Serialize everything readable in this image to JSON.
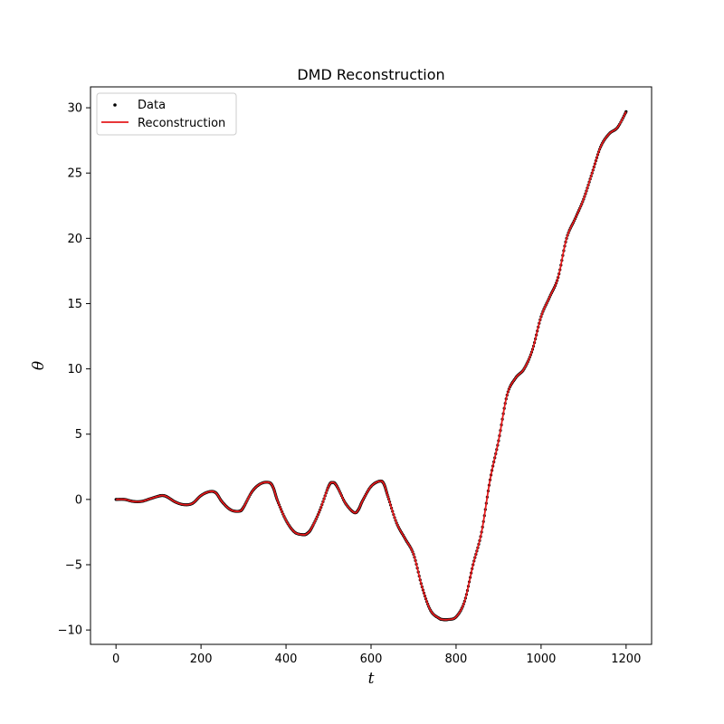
{
  "chart_data": {
    "type": "line",
    "title": "DMD Reconstruction",
    "xlabel": "t",
    "ylabel": "θ",
    "xlim": [
      -60,
      1260
    ],
    "ylim": [
      -11.1,
      31.6
    ],
    "xticks": [
      0,
      200,
      400,
      600,
      800,
      1000,
      1200
    ],
    "xtick_labels": [
      "0",
      "200",
      "400",
      "600",
      "800",
      "1000",
      "1200"
    ],
    "yticks": [
      -10,
      -5,
      0,
      5,
      10,
      15,
      20,
      25,
      30
    ],
    "ytick_labels": [
      "−10",
      "−5",
      "0",
      "5",
      "10",
      "15",
      "20",
      "25",
      "30"
    ],
    "grid": false,
    "legend": {
      "placement": "top-left"
    },
    "colors": {
      "data": "#000000",
      "reconstruction": "#e41a1c"
    },
    "series": [
      {
        "name": "Data",
        "style": "points",
        "x": [
          0,
          20,
          40,
          60,
          80,
          100,
          110,
          120,
          140,
          160,
          180,
          200,
          220,
          235,
          250,
          270,
          290,
          300,
          320,
          340,
          360,
          370,
          380,
          400,
          420,
          440,
          450,
          460,
          480,
          500,
          510,
          520,
          540,
          560,
          570,
          580,
          600,
          620,
          630,
          640,
          660,
          680,
          700,
          720,
          740,
          760,
          770,
          780,
          800,
          820,
          840,
          860,
          880,
          900,
          920,
          940,
          960,
          980,
          1000,
          1020,
          1040,
          1060,
          1080,
          1100,
          1120,
          1140,
          1160,
          1180,
          1200
        ],
        "y": [
          0.0,
          0.0,
          -0.15,
          -0.15,
          0.05,
          0.25,
          0.3,
          0.2,
          -0.2,
          -0.4,
          -0.3,
          0.3,
          0.6,
          0.5,
          -0.2,
          -0.8,
          -0.9,
          -0.6,
          0.6,
          1.2,
          1.3,
          0.9,
          -0.1,
          -1.6,
          -2.5,
          -2.7,
          -2.6,
          -2.2,
          -0.8,
          1.0,
          1.3,
          1.0,
          -0.3,
          -1.0,
          -0.8,
          -0.1,
          1.0,
          1.4,
          1.2,
          0.2,
          -1.8,
          -3.0,
          -4.2,
          -6.7,
          -8.5,
          -9.1,
          -9.2,
          -9.2,
          -9.0,
          -7.8,
          -5.0,
          -2.5,
          1.5,
          4.5,
          8.0,
          9.3,
          10.0,
          11.5,
          14.0,
          15.5,
          17.0,
          20.0,
          21.5,
          23.0,
          25.0,
          27.0,
          28.0,
          28.5,
          29.7
        ]
      },
      {
        "name": "Reconstruction",
        "style": "line",
        "x": [
          0,
          20,
          40,
          60,
          80,
          100,
          110,
          120,
          140,
          160,
          180,
          200,
          220,
          235,
          250,
          270,
          290,
          300,
          320,
          340,
          360,
          370,
          380,
          400,
          420,
          440,
          450,
          460,
          480,
          500,
          510,
          520,
          540,
          560,
          570,
          580,
          600,
          620,
          630,
          640,
          660,
          680,
          700,
          720,
          740,
          760,
          770,
          780,
          800,
          820,
          840,
          860,
          880,
          900,
          920,
          940,
          960,
          980,
          1000,
          1020,
          1040,
          1060,
          1080,
          1100,
          1120,
          1140,
          1160,
          1180,
          1200
        ],
        "y": [
          0.0,
          0.0,
          -0.15,
          -0.15,
          0.05,
          0.25,
          0.3,
          0.2,
          -0.2,
          -0.4,
          -0.3,
          0.3,
          0.6,
          0.5,
          -0.2,
          -0.8,
          -0.9,
          -0.6,
          0.6,
          1.2,
          1.3,
          0.9,
          -0.1,
          -1.6,
          -2.5,
          -2.7,
          -2.6,
          -2.2,
          -0.8,
          1.0,
          1.3,
          1.0,
          -0.3,
          -1.0,
          -0.8,
          -0.1,
          1.0,
          1.4,
          1.2,
          0.2,
          -1.8,
          -3.0,
          -4.2,
          -6.7,
          -8.5,
          -9.1,
          -9.2,
          -9.2,
          -9.0,
          -7.8,
          -5.0,
          -2.5,
          1.5,
          4.5,
          8.0,
          9.3,
          10.0,
          11.5,
          14.0,
          15.5,
          17.0,
          20.0,
          21.5,
          23.0,
          25.0,
          27.0,
          28.0,
          28.5,
          29.7
        ]
      }
    ]
  }
}
